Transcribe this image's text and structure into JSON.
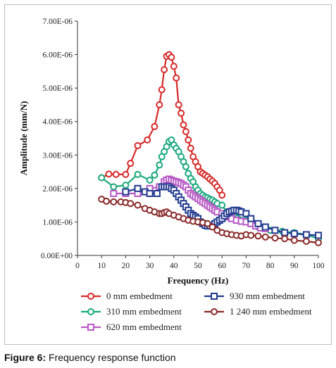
{
  "caption": {
    "label": "Figure 6:",
    "text": " Frequency response function"
  },
  "chart_data": {
    "type": "line",
    "xlabel": "Frequency (Hz)",
    "ylabel": "Amplitude (mm/N)",
    "xlim": [
      0,
      100
    ],
    "ylim": [
      0,
      7e-06
    ],
    "xticks": [
      "0",
      "10",
      "20",
      "30",
      "40",
      "50",
      "60",
      "70",
      "80",
      "90",
      "100"
    ],
    "yticks": [
      "0.00E+00",
      "1.00E-06",
      "2.00E-06",
      "3.00E-06",
      "4.00E-06",
      "5.00E-06",
      "6.00E-06",
      "7.00E-06"
    ],
    "grid": false,
    "legend_position": "bottom",
    "series": [
      {
        "name": "0 mm embedment",
        "color": "#d62a2a",
        "marker": "circle",
        "points": [
          [
            10,
            2.32e-06
          ],
          [
            13,
            2.43e-06
          ],
          [
            16,
            2.42e-06
          ],
          [
            20,
            2.42e-06
          ],
          [
            22,
            2.75e-06
          ],
          [
            25,
            3.28e-06
          ],
          [
            29,
            3.45e-06
          ],
          [
            32,
            3.85e-06
          ],
          [
            34,
            4.5e-06
          ],
          [
            35,
            4.95e-06
          ],
          [
            36,
            5.55e-06
          ],
          [
            37,
            5.95e-06
          ],
          [
            38,
            6e-06
          ],
          [
            39,
            5.92e-06
          ],
          [
            40,
            5.65e-06
          ],
          [
            41,
            5.3e-06
          ],
          [
            42,
            4.5e-06
          ],
          [
            43,
            4.25e-06
          ],
          [
            44,
            3.9e-06
          ],
          [
            45,
            3.7e-06
          ],
          [
            46,
            3.45e-06
          ],
          [
            47,
            3.2e-06
          ],
          [
            48,
            2.95e-06
          ],
          [
            49,
            2.8e-06
          ],
          [
            50,
            2.65e-06
          ],
          [
            51,
            2.5e-06
          ],
          [
            52,
            2.45e-06
          ],
          [
            53,
            2.4e-06
          ],
          [
            54,
            2.35e-06
          ],
          [
            55,
            2.28e-06
          ],
          [
            56,
            2.22e-06
          ],
          [
            57,
            2.15e-06
          ],
          [
            58,
            2.05e-06
          ],
          [
            59,
            1.95e-06
          ],
          [
            60,
            1.8e-06
          ]
        ]
      },
      {
        "name": "310 mm embedment",
        "color": "#1aa97b",
        "marker": "circle",
        "points": [
          [
            10,
            2.32e-06
          ],
          [
            15,
            2.05e-06
          ],
          [
            20,
            2.1e-06
          ],
          [
            25,
            2.42e-06
          ],
          [
            30,
            2.25e-06
          ],
          [
            32,
            2.4e-06
          ],
          [
            34,
            2.7e-06
          ],
          [
            35,
            2.95e-06
          ],
          [
            36,
            3.1e-06
          ],
          [
            37,
            3.25e-06
          ],
          [
            38,
            3.4e-06
          ],
          [
            39,
            3.45e-06
          ],
          [
            40,
            3.3e-06
          ],
          [
            41,
            3.2e-06
          ],
          [
            42,
            3.1e-06
          ],
          [
            43,
            2.95e-06
          ],
          [
            44,
            2.8e-06
          ],
          [
            45,
            2.65e-06
          ],
          [
            46,
            2.45e-06
          ],
          [
            47,
            2.3e-06
          ],
          [
            48,
            2.2e-06
          ],
          [
            49,
            2.05e-06
          ],
          [
            50,
            1.95e-06
          ],
          [
            51,
            1.85e-06
          ],
          [
            52,
            1.8e-06
          ],
          [
            53,
            1.75e-06
          ],
          [
            54,
            1.72e-06
          ],
          [
            55,
            1.68e-06
          ],
          [
            56,
            1.65e-06
          ],
          [
            57,
            1.6e-06
          ],
          [
            58,
            1.55e-06
          ],
          [
            60,
            1.5e-06
          ],
          [
            62,
            1.3e-06
          ],
          [
            65,
            1.25e-06
          ],
          [
            70,
            1.05e-06
          ],
          [
            75,
            8.5e-07
          ],
          [
            80,
            7.5e-07
          ],
          [
            85,
            7.2e-07
          ],
          [
            90,
            6.8e-07
          ],
          [
            95,
            6.2e-07
          ],
          [
            100,
            5e-07
          ]
        ]
      },
      {
        "name": "620 mm embedment",
        "color": "#b759c4",
        "marker": "square",
        "points": [
          [
            15,
            1.85e-06
          ],
          [
            20,
            1.85e-06
          ],
          [
            25,
            1.85e-06
          ],
          [
            30,
            2e-06
          ],
          [
            34,
            2.05e-06
          ],
          [
            36,
            2.2e-06
          ],
          [
            37,
            2.25e-06
          ],
          [
            38,
            2.28e-06
          ],
          [
            39,
            2.25e-06
          ],
          [
            40,
            2.22e-06
          ],
          [
            41,
            2.2e-06
          ],
          [
            42,
            2.18e-06
          ],
          [
            43,
            2.15e-06
          ],
          [
            44,
            2.1e-06
          ],
          [
            45,
            2.05e-06
          ],
          [
            46,
            1.95e-06
          ],
          [
            47,
            1.85e-06
          ],
          [
            48,
            1.8e-06
          ],
          [
            49,
            1.75e-06
          ],
          [
            50,
            1.7e-06
          ],
          [
            51,
            1.65e-06
          ],
          [
            52,
            1.6e-06
          ],
          [
            53,
            1.55e-06
          ],
          [
            54,
            1.5e-06
          ],
          [
            55,
            1.45e-06
          ],
          [
            56,
            1.4e-06
          ],
          [
            57,
            1.35e-06
          ],
          [
            58,
            1.3e-06
          ],
          [
            60,
            1.25e-06
          ],
          [
            62,
            1.15e-06
          ],
          [
            64,
            1.1e-06
          ],
          [
            66,
            1.05e-06
          ],
          [
            68,
            1.02e-06
          ],
          [
            70,
            1e-06
          ],
          [
            72,
            9.5e-07
          ],
          [
            74,
            8.8e-07
          ],
          [
            76,
            8.2e-07
          ],
          [
            78,
            8e-07
          ]
        ]
      },
      {
        "name": "930 mm embedment",
        "color": "#223a8f",
        "marker": "square",
        "points": [
          [
            20,
            1.9e-06
          ],
          [
            25,
            2e-06
          ],
          [
            28,
            1.9e-06
          ],
          [
            30,
            1.85e-06
          ],
          [
            33,
            1.85e-06
          ],
          [
            35,
            2.05e-06
          ],
          [
            36,
            2.05e-06
          ],
          [
            37,
            2.05e-06
          ],
          [
            38,
            2.05e-06
          ],
          [
            39,
            2e-06
          ],
          [
            40,
            1.95e-06
          ],
          [
            41,
            1.85e-06
          ],
          [
            42,
            1.75e-06
          ],
          [
            43,
            1.65e-06
          ],
          [
            44,
            1.55e-06
          ],
          [
            45,
            1.45e-06
          ],
          [
            46,
            1.35e-06
          ],
          [
            47,
            1.25e-06
          ],
          [
            48,
            1.2e-06
          ],
          [
            49,
            1.15e-06
          ],
          [
            50,
            1.1e-06
          ],
          [
            51,
            1e-06
          ],
          [
            52,
            9.5e-07
          ],
          [
            53,
            9e-07
          ],
          [
            54,
            8.8e-07
          ],
          [
            55,
            8.8e-07
          ],
          [
            57,
            9.5e-07
          ],
          [
            58,
            1e-06
          ],
          [
            59,
            1.05e-06
          ],
          [
            60,
            1.1e-06
          ],
          [
            61,
            1.18e-06
          ],
          [
            62,
            1.25e-06
          ],
          [
            63,
            1.3e-06
          ],
          [
            64,
            1.32e-06
          ],
          [
            65,
            1.35e-06
          ],
          [
            66,
            1.35e-06
          ],
          [
            67,
            1.33e-06
          ],
          [
            68,
            1.3e-06
          ],
          [
            70,
            1.25e-06
          ],
          [
            72,
            1.1e-06
          ],
          [
            75,
            9.5e-07
          ],
          [
            78,
            8.5e-07
          ],
          [
            82,
            7.5e-07
          ],
          [
            86,
            6.8e-07
          ],
          [
            90,
            6.5e-07
          ],
          [
            95,
            6.2e-07
          ],
          [
            100,
            6e-07
          ]
        ]
      },
      {
        "name": "1 240 mm embedment",
        "color": "#8a2a2a",
        "marker": "circle",
        "points": [
          [
            10,
            1.68e-06
          ],
          [
            12,
            1.62e-06
          ],
          [
            15,
            1.6e-06
          ],
          [
            18,
            1.6e-06
          ],
          [
            20,
            1.58e-06
          ],
          [
            22,
            1.55e-06
          ],
          [
            25,
            1.5e-06
          ],
          [
            28,
            1.4e-06
          ],
          [
            30,
            1.35e-06
          ],
          [
            32,
            1.3e-06
          ],
          [
            34,
            1.25e-06
          ],
          [
            35,
            1.25e-06
          ],
          [
            36,
            1.28e-06
          ],
          [
            37,
            1.3e-06
          ],
          [
            38,
            1.25e-06
          ],
          [
            40,
            1.2e-06
          ],
          [
            42,
            1.15e-06
          ],
          [
            44,
            1.1e-06
          ],
          [
            46,
            1.05e-06
          ],
          [
            48,
            1.02e-06
          ],
          [
            50,
            1e-06
          ],
          [
            52,
            9.8e-07
          ],
          [
            54,
            9.5e-07
          ],
          [
            56,
            8.5e-07
          ],
          [
            58,
            7.5e-07
          ],
          [
            60,
            6.8e-07
          ],
          [
            62,
            6.5e-07
          ],
          [
            64,
            6.2e-07
          ],
          [
            66,
            6e-07
          ],
          [
            68,
            5.8e-07
          ],
          [
            70,
            6.2e-07
          ],
          [
            72,
            6e-07
          ],
          [
            75,
            5.8e-07
          ],
          [
            78,
            5.5e-07
          ],
          [
            82,
            5.2e-07
          ],
          [
            86,
            5e-07
          ],
          [
            90,
            4.5e-07
          ],
          [
            95,
            4.2e-07
          ],
          [
            100,
            3.8e-07
          ]
        ]
      }
    ]
  }
}
